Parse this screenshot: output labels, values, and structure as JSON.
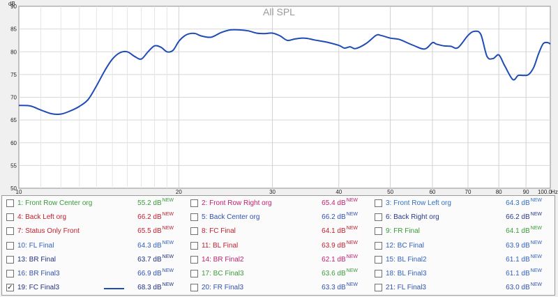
{
  "chart_data": {
    "type": "line",
    "title": "All SPL",
    "x_unit": "Hz",
    "y_unit": "dB",
    "x_scale": "log",
    "xlim": [
      10,
      100
    ],
    "ylim": [
      50,
      90
    ],
    "x_tick_labels": [
      "10",
      "20",
      "30",
      "40",
      "50",
      "60",
      "70",
      "80",
      "90",
      "100.0"
    ],
    "y_tick_labels": [
      "50",
      "55",
      "60",
      "65",
      "70",
      "75",
      "80",
      "85",
      "90"
    ],
    "grid": true,
    "series": [
      {
        "name": "19: FC Final3",
        "color": "#1f4bb4",
        "x": [
          10,
          10.5,
          11,
          11.5,
          12,
          12.5,
          13,
          13.5,
          14,
          14.5,
          15,
          15.5,
          16,
          16.5,
          17,
          17.5,
          18,
          18.5,
          19,
          19.5,
          20,
          20.5,
          21,
          21.5,
          22,
          23,
          24,
          25,
          26,
          27,
          28,
          29,
          30,
          31,
          32,
          33,
          34,
          35,
          36,
          38,
          40,
          41,
          42,
          43,
          45,
          47,
          48,
          50,
          52,
          55,
          58,
          60,
          61,
          63,
          65,
          67,
          70,
          72,
          74,
          76,
          78,
          80,
          82,
          85,
          87,
          89,
          91,
          93,
          95,
          97,
          99,
          100
        ],
        "y": [
          68.2,
          68.1,
          67.2,
          66.4,
          66.3,
          67.0,
          68.0,
          69.5,
          72.5,
          75.8,
          78.4,
          79.8,
          80.0,
          79.0,
          78.4,
          80.0,
          81.3,
          81.0,
          80.0,
          80.3,
          82.3,
          83.5,
          84.0,
          84.0,
          83.5,
          83.2,
          84.2,
          84.8,
          84.8,
          84.6,
          84.1,
          84.0,
          84.1,
          83.5,
          82.5,
          82.8,
          83.0,
          82.9,
          82.6,
          82.1,
          81.4,
          80.8,
          81.1,
          80.7,
          81.8,
          83.6,
          83.6,
          83.0,
          82.7,
          81.5,
          80.6,
          82.0,
          81.7,
          81.3,
          81.2,
          80.9,
          83.6,
          84.5,
          83.8,
          79.0,
          78.5,
          79.3,
          77.0,
          73.9,
          74.8,
          74.8,
          75.0,
          76.5,
          79.5,
          81.8,
          82.0,
          81.7
        ]
      }
    ]
  },
  "legend": {
    "items": [
      {
        "label": "1: Front Row Center org",
        "value": "55.2 dB",
        "new": "NEW",
        "color": "#3a9a3a",
        "checked": false
      },
      {
        "label": "2: Front Row Right org",
        "value": "65.4 dB",
        "new": "NEW",
        "color": "#c02070",
        "checked": false
      },
      {
        "label": "3: Front Row Left org",
        "value": "64.3 dB",
        "new": "NEW",
        "color": "#3070c0",
        "checked": false
      },
      {
        "label": "4: Back Left org",
        "value": "66.2 dB",
        "new": "NEW",
        "color": "#c02030",
        "checked": false
      },
      {
        "label": "5: Back Center org",
        "value": "66.2 dB",
        "new": "NEW",
        "color": "#3050b0",
        "checked": false
      },
      {
        "label": "6: Back Right org",
        "value": "66.2 dB",
        "new": "NEW",
        "color": "#2a3a8a",
        "checked": false
      },
      {
        "label": "7: Status Only Front",
        "value": "65.5 dB",
        "new": "NEW",
        "color": "#c02030",
        "checked": false
      },
      {
        "label": "8: FC Final",
        "value": "64.1 dB",
        "new": "NEW",
        "color": "#c02030",
        "checked": false
      },
      {
        "label": "9: FR Final",
        "value": "64.1 dB",
        "new": "NEW",
        "color": "#3a9a3a",
        "checked": false
      },
      {
        "label": "10: FL Final",
        "value": "64.3 dB",
        "new": "NEW",
        "color": "#3060c0",
        "checked": false
      },
      {
        "label": "11: BL Final",
        "value": "63.9 dB",
        "new": "NEW",
        "color": "#c02030",
        "checked": false
      },
      {
        "label": "12: BC Final",
        "value": "63.9 dB",
        "new": "NEW",
        "color": "#3060c0",
        "checked": false
      },
      {
        "label": "13: BR Final",
        "value": "63.7 dB",
        "new": "NEW",
        "color": "#203080",
        "checked": false
      },
      {
        "label": "14: BR Final2",
        "value": "62.1 dB",
        "new": "NEW",
        "color": "#c02070",
        "checked": false
      },
      {
        "label": "15: BL Final2",
        "value": "61.1 dB",
        "new": "NEW",
        "color": "#3060c0",
        "checked": false
      },
      {
        "label": "16: BR Final3",
        "value": "66.9 dB",
        "new": "NEW",
        "color": "#3050b0",
        "checked": false
      },
      {
        "label": "17: BC Final3",
        "value": "63.6 dB",
        "new": "NEW",
        "color": "#3a9a3a",
        "checked": false
      },
      {
        "label": "18: BL Final3",
        "value": "61.1 dB",
        "new": "NEW",
        "color": "#3060c0",
        "checked": false
      },
      {
        "label": "19: FC Final3",
        "value": "68.3 dB",
        "new": "NEW",
        "color": "#203080",
        "checked": true,
        "swatch_color": "#1f4bb4"
      },
      {
        "label": "20: FR Final3",
        "value": "63.3 dB",
        "new": "NEW",
        "color": "#3050b0",
        "checked": false
      },
      {
        "label": "21: FL Final3",
        "value": "63.0 dB",
        "new": "NEW",
        "color": "#3050b0",
        "checked": false
      }
    ]
  }
}
